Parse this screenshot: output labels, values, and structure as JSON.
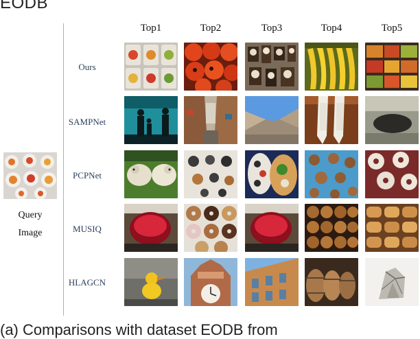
{
  "dataset_label": "EODB",
  "columns": [
    "Top1",
    "Top2",
    "Top3",
    "Top4",
    "Top5"
  ],
  "query": {
    "line1": "Query",
    "line2": "Image"
  },
  "rows": [
    {
      "method": "Ours"
    },
    {
      "method": "SAMPNet"
    },
    {
      "method": "PCPNet"
    },
    {
      "method": "MUSIQ"
    },
    {
      "method": "HLAGCN"
    }
  ],
  "caption": "(a) Comparisons with dataset EODB from"
}
